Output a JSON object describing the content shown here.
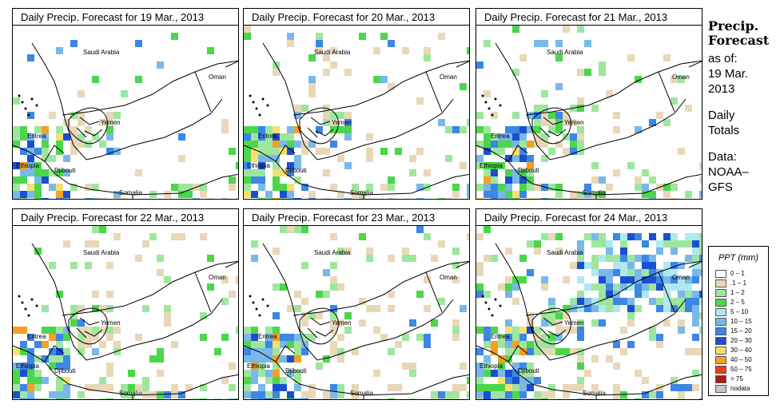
{
  "panels": [
    {
      "title": "Daily Precip. Forecast for  19 Mar., 2013",
      "intensity": 1
    },
    {
      "title": "Daily Precip. Forecast for  20 Mar., 2013",
      "intensity": 2
    },
    {
      "title": "Daily Precip. Forecast for  21 Mar., 2013",
      "intensity": 2
    },
    {
      "title": "Daily Precip. Forecast for  22 Mar., 2013",
      "intensity": 2
    },
    {
      "title": "Daily Precip. Forecast for  23 Mar., 2013",
      "intensity": 3
    },
    {
      "title": "Daily Precip. Forecast for  24 Mar., 2013",
      "intensity": 4
    }
  ],
  "map_labels": {
    "saudi": "Saudi Arabia",
    "oman": "Oman",
    "yemen": "Yemen",
    "eritrea": "Eritrea",
    "ethiopia": "Ethiopia",
    "djibouti": "Djibouti",
    "somalia": "Somalia"
  },
  "side": {
    "title1": "Precip.",
    "title2": "Forecast",
    "asof": "as of:",
    "date1": "19 Mar.",
    "date2": "2013",
    "daily1": "Daily",
    "daily2": "Totals",
    "data1": "Data:",
    "data2": "NOAA–",
    "data3": "GFS"
  },
  "legend": {
    "title": "PPT (mm)",
    "items": [
      {
        "label": "0 – 1",
        "color": "#ffffff"
      },
      {
        "label": ".1 – 1",
        "color": "#e8d8b8"
      },
      {
        "label": "1 – 2",
        "color": "#9ee69e"
      },
      {
        "label": "2 – 5",
        "color": "#4cd64c"
      },
      {
        "label": "5 – 10",
        "color": "#b0e8f0"
      },
      {
        "label": "10 – 15",
        "color": "#7ab8ea"
      },
      {
        "label": "15 – 20",
        "color": "#3c86e6"
      },
      {
        "label": "20 – 30",
        "color": "#1a50d0"
      },
      {
        "label": "30 – 40",
        "color": "#f8e070"
      },
      {
        "label": "40 – 50",
        "color": "#f5a020"
      },
      {
        "label": "50 – 75",
        "color": "#e84010"
      },
      {
        "label": "> 75",
        "color": "#b01810"
      },
      {
        "label": "nodata",
        "color": "#c8c8c8"
      }
    ]
  }
}
